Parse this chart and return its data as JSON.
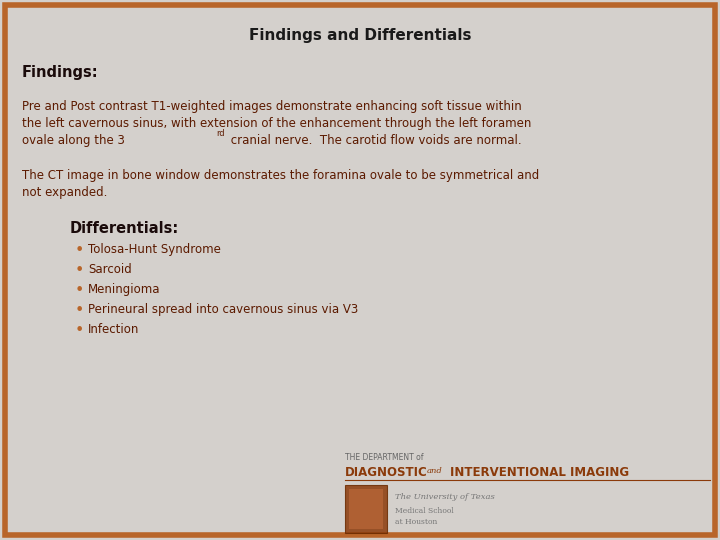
{
  "title": "Findings and Differentials",
  "title_fontsize": 11,
  "title_color": "#1a1a1a",
  "bg_color": "#d4d0cc",
  "border_color": "#b8652a",
  "border_linewidth": 4,
  "findings_header": "Findings:",
  "findings_header_color": "#1a0a0a",
  "findings_header_fontsize": 10.5,
  "text_color": "#5c1a00",
  "text_fontsize": 8.5,
  "para1_lines": [
    "Pre and Post contrast T1-weighted images demonstrate enhancing soft tissue within",
    "the left cavernous sinus, with extension of the enhancement through the left foramen",
    "ovale along the 3",
    " cranial nerve.  The carotid flow voids are normal."
  ],
  "para2_lines": [
    "The CT image in bone window demonstrates the foramina ovale to be symmetrical and",
    "not expanded."
  ],
  "differentials_header": "Differentials:",
  "differentials_header_fontsize": 10.5,
  "differentials_header_color": "#1a0a0a",
  "bullet_items": [
    "Tolosa-Hunt Syndrome",
    "Sarcoid",
    "Meningioma",
    "Perineural spread into cavernous sinus via V3",
    "Infection"
  ],
  "bullet_color": "#b8652a",
  "bullet_text_color": "#5c1a00",
  "bullet_fontsize": 8.5,
  "dept_color_small": "#666666",
  "dept_color_large": "#8b3a0a",
  "shield_color": "#8b3a0a",
  "ut_text_color": "#777777"
}
